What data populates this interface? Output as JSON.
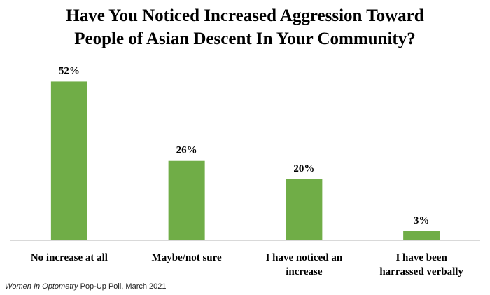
{
  "chart_data": {
    "type": "bar",
    "title_lines": [
      "Have You Noticed Increased Aggression Toward",
      "People of Asian Descent In Your Community?"
    ],
    "categories": [
      [
        "No increase at all"
      ],
      [
        "Maybe/not sure"
      ],
      [
        "I have noticed an",
        "increase"
      ],
      [
        "I have been",
        "harrassed verbally"
      ]
    ],
    "values": [
      52,
      26,
      20,
      3
    ],
    "value_labels": [
      "52%",
      "26%",
      "20%",
      "3%"
    ],
    "ylim": [
      0,
      56
    ],
    "grid": false,
    "bar_color": "#70ad47"
  },
  "source": {
    "publication": "Women In Optometry",
    "rest": " Pop-Up Poll, March 2021"
  }
}
